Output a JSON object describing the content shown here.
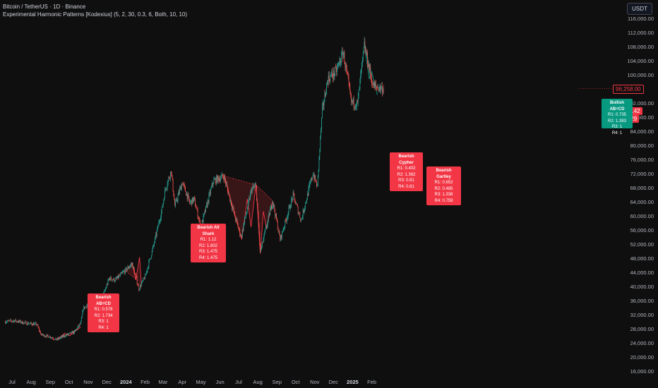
{
  "header": {
    "symbol_line": "Bitcoin / TetherUS · 1D · Binance",
    "indicator_line": "Experimental Harmonic Patterns [Kodexius] (5, 2, 30, 0.3, 6, Both, 10, 10)"
  },
  "toolbar": {
    "currency_label": "USDT"
  },
  "colors": {
    "up": "#26a69a",
    "down": "#ef5350",
    "bear_box": "#f23645",
    "bull_box": "#089981",
    "background": "#0f0f0f"
  },
  "y_axis": {
    "ticks": [
      "116,000.00",
      "112,000.00",
      "108,000.00",
      "104,000.00",
      "100,000.00",
      "92,000.00",
      "88,000.00",
      "84,000.00",
      "80,000.00",
      "76,000.00",
      "72,000.00",
      "68,000.00",
      "64,000.00",
      "60,000.00",
      "56,000.00",
      "52,000.00",
      "48,000.00",
      "44,000.00",
      "40,000.00",
      "36,000.00",
      "32,000.00",
      "28,000.00",
      "24,000.00",
      "20,000.00",
      "16,000.00"
    ]
  },
  "x_axis": {
    "ticks": [
      "Jul",
      "Aug",
      "Sep",
      "Oct",
      "Nov",
      "Dec",
      "2024",
      "Feb",
      "Mar",
      "Apr",
      "May",
      "Jun",
      "Jul",
      "Aug",
      "Sep",
      "Oct",
      "Nov",
      "Dec",
      "2025",
      "Feb"
    ]
  },
  "price_tags": {
    "last_close": "96,258.00",
    "current_price": "90,031.42",
    "countdown": "14:23:29"
  },
  "patterns": [
    {
      "title": "Bearish AB=CD",
      "lines": [
        "R1: 0.578",
        "R2: 1.734",
        "R3: 1",
        "R4: 1"
      ]
    },
    {
      "title": "Bearish Alt Shark",
      "lines": [
        "R1: 1.12",
        "R2: 1.602",
        "R3: 1.475",
        "R4: 1.475"
      ]
    },
    {
      "title": "Bearish Cypher",
      "lines": [
        "R1: 0.402",
        "R2: 1.362",
        "R3: 0.81",
        "R4: 0.81"
      ]
    },
    {
      "title": "Bearish Gartley",
      "lines": [
        "R1: 0.652",
        "R2: 0.485",
        "R3: 1.338",
        "R4: 0.759"
      ]
    },
    {
      "title": "Bullish AB=CD",
      "lines": [
        "R1: 0.735",
        "R2: 1.383",
        "R3: 1",
        "R4: 1"
      ]
    }
  ],
  "chart_data": {
    "type": "candlestick",
    "y_unit": "USDT",
    "ylim": [
      14000,
      118000
    ],
    "path_points": [
      [
        "2023-06-20",
        30200
      ],
      [
        "2023-07-05",
        30500
      ],
      [
        "2023-07-20",
        29900
      ],
      [
        "2023-08-10",
        29400
      ],
      [
        "2023-08-17",
        26500
      ],
      [
        "2023-09-01",
        25900
      ],
      [
        "2023-09-11",
        25100
      ],
      [
        "2023-09-25",
        26300
      ],
      [
        "2023-10-10",
        27300
      ],
      [
        "2023-10-20",
        29800
      ],
      [
        "2023-10-24",
        33900
      ],
      [
        "2023-11-10",
        36700
      ],
      [
        "2023-11-25",
        37500
      ],
      [
        "2023-12-05",
        42500
      ],
      [
        "2023-12-15",
        42000
      ],
      [
        "2024-01-11",
        46600
      ],
      [
        "2024-01-22",
        39600
      ],
      [
        "2024-02-01",
        43000
      ],
      [
        "2024-02-15",
        52000
      ],
      [
        "2024-02-28",
        62000
      ],
      [
        "2024-03-05",
        68000
      ],
      [
        "2024-03-14",
        73000
      ],
      [
        "2024-03-20",
        63000
      ],
      [
        "2024-04-01",
        69700
      ],
      [
        "2024-04-13",
        63900
      ],
      [
        "2024-04-20",
        64900
      ],
      [
        "2024-05-01",
        57000
      ],
      [
        "2024-05-21",
        70000
      ],
      [
        "2024-06-07",
        71500
      ],
      [
        "2024-06-24",
        60500
      ],
      [
        "2024-07-05",
        54300
      ],
      [
        "2024-07-22",
        67800
      ],
      [
        "2024-07-29",
        68500
      ],
      [
        "2024-08-05",
        50000
      ],
      [
        "2024-08-25",
        64500
      ],
      [
        "2024-09-06",
        53500
      ],
      [
        "2024-09-27",
        66000
      ],
      [
        "2024-10-10",
        59000
      ],
      [
        "2024-10-29",
        72300
      ],
      [
        "2024-11-05",
        68500
      ],
      [
        "2024-11-13",
        90000
      ],
      [
        "2024-11-22",
        99000
      ],
      [
        "2024-12-05",
        101000
      ],
      [
        "2024-12-17",
        106500
      ],
      [
        "2024-12-30",
        92500
      ],
      [
        "2025-01-09",
        92000
      ],
      [
        "2025-01-20",
        108500
      ],
      [
        "2025-02-03",
        97000
      ],
      [
        "2025-02-20",
        96258
      ]
    ],
    "harmonic_patterns": [
      {
        "name": "Bearish AB=CD",
        "points": [
          [
            "2023-09-11",
            25100
          ],
          [
            "2023-09-24",
            26900
          ],
          [
            "2023-10-02",
            26200
          ],
          [
            "2023-10-20",
            28700
          ]
        ]
      },
      {
        "name": "Bearish Alt Shark",
        "points": [
          [
            "2024-01-01",
            44500
          ],
          [
            "2024-01-11",
            46800
          ],
          [
            "2024-01-17",
            42000
          ],
          [
            "2024-01-23",
            48500
          ],
          [
            "2024-01-26",
            41000
          ]
        ]
      },
      {
        "name": "Bearish Cypher",
        "points": [
          [
            "2024-06-08",
            71500
          ],
          [
            "2024-07-06",
            53500
          ],
          [
            "2024-07-15",
            65000
          ],
          [
            "2024-07-21",
            57000
          ],
          [
            "2024-07-29",
            69000
          ]
        ]
      },
      {
        "name": "Bearish Gartley",
        "points": [
          [
            "2024-07-29",
            69000
          ],
          [
            "2024-08-05",
            49500
          ],
          [
            "2024-08-10",
            61500
          ],
          [
            "2024-08-15",
            56500
          ],
          [
            "2024-08-25",
            64500
          ]
        ]
      },
      {
        "name": "Bullish AB=CD",
        "points": [
          [
            "2025-01-20",
            109000
          ],
          [
            "2025-01-28",
            99000
          ],
          [
            "2025-02-01",
            101000
          ],
          [
            "2025-02-10",
            94500
          ]
        ]
      }
    ]
  }
}
